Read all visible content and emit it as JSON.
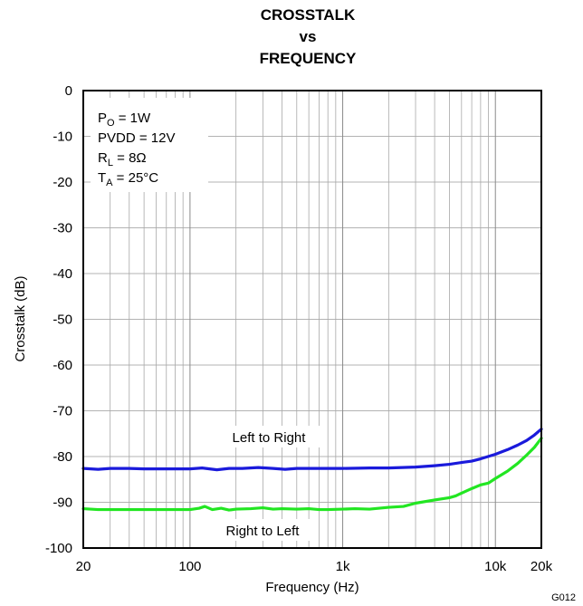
{
  "chart_data": {
    "type": "line",
    "title": [
      "CROSSTALK",
      "vs",
      "FREQUENCY"
    ],
    "xlabel": "Frequency (Hz)",
    "ylabel": "Crosstalk (dB)",
    "xscale": "log",
    "xlim": [
      20,
      20000
    ],
    "ylim": [
      -100,
      0
    ],
    "x_ticks": [
      {
        "value": 20,
        "label": "20"
      },
      {
        "value": 100,
        "label": "100"
      },
      {
        "value": 1000,
        "label": "1k"
      },
      {
        "value": 10000,
        "label": "10k"
      },
      {
        "value": 20000,
        "label": "20k"
      }
    ],
    "y_ticks": [
      0,
      -10,
      -20,
      -30,
      -40,
      -50,
      -60,
      -70,
      -80,
      -90,
      -100
    ],
    "grid": true,
    "conditions": {
      "po": {
        "sym": "P",
        "sub": "O",
        "rest": " = 1W"
      },
      "pvdd": "PVDD = 12V",
      "rl": {
        "sym": "R",
        "sub": "L",
        "rest": " = 8Ω"
      },
      "ta": {
        "sym": "T",
        "sub": "A",
        "rest": " = 25°C"
      }
    },
    "figure_id": "G012",
    "series": [
      {
        "name": "Left to Right",
        "color": "#1a1adb",
        "points": [
          [
            20,
            -82.6
          ],
          [
            25,
            -82.8
          ],
          [
            30,
            -82.6
          ],
          [
            40,
            -82.6
          ],
          [
            50,
            -82.7
          ],
          [
            70,
            -82.7
          ],
          [
            100,
            -82.7
          ],
          [
            120,
            -82.5
          ],
          [
            150,
            -82.9
          ],
          [
            180,
            -82.6
          ],
          [
            220,
            -82.6
          ],
          [
            280,
            -82.4
          ],
          [
            350,
            -82.6
          ],
          [
            420,
            -82.8
          ],
          [
            500,
            -82.6
          ],
          [
            700,
            -82.6
          ],
          [
            1000,
            -82.6
          ],
          [
            1500,
            -82.5
          ],
          [
            2000,
            -82.5
          ],
          [
            3000,
            -82.3
          ],
          [
            4000,
            -82.0
          ],
          [
            5000,
            -81.7
          ],
          [
            6000,
            -81.3
          ],
          [
            7000,
            -81.0
          ],
          [
            8000,
            -80.5
          ],
          [
            10000,
            -79.5
          ],
          [
            12000,
            -78.5
          ],
          [
            14000,
            -77.5
          ],
          [
            16000,
            -76.5
          ],
          [
            18000,
            -75.3
          ],
          [
            20000,
            -74.0
          ]
        ]
      },
      {
        "name": "Right to Left",
        "color": "#22e622",
        "points": [
          [
            20,
            -91.4
          ],
          [
            25,
            -91.6
          ],
          [
            30,
            -91.6
          ],
          [
            50,
            -91.6
          ],
          [
            70,
            -91.6
          ],
          [
            100,
            -91.6
          ],
          [
            115,
            -91.3
          ],
          [
            125,
            -90.9
          ],
          [
            140,
            -91.6
          ],
          [
            160,
            -91.3
          ],
          [
            180,
            -91.7
          ],
          [
            200,
            -91.5
          ],
          [
            250,
            -91.4
          ],
          [
            300,
            -91.2
          ],
          [
            350,
            -91.5
          ],
          [
            400,
            -91.4
          ],
          [
            500,
            -91.5
          ],
          [
            600,
            -91.4
          ],
          [
            700,
            -91.6
          ],
          [
            800,
            -91.6
          ],
          [
            1000,
            -91.5
          ],
          [
            1200,
            -91.4
          ],
          [
            1500,
            -91.5
          ],
          [
            2000,
            -91.1
          ],
          [
            2500,
            -90.9
          ],
          [
            3000,
            -90.2
          ],
          [
            4000,
            -89.5
          ],
          [
            5000,
            -89.0
          ],
          [
            5500,
            -88.6
          ],
          [
            6000,
            -88.0
          ],
          [
            7000,
            -87.0
          ],
          [
            8000,
            -86.2
          ],
          [
            9000,
            -85.8
          ],
          [
            10000,
            -84.8
          ],
          [
            12000,
            -83.2
          ],
          [
            14000,
            -81.5
          ],
          [
            16000,
            -79.7
          ],
          [
            18000,
            -78.0
          ],
          [
            20000,
            -76.0
          ]
        ]
      }
    ]
  }
}
